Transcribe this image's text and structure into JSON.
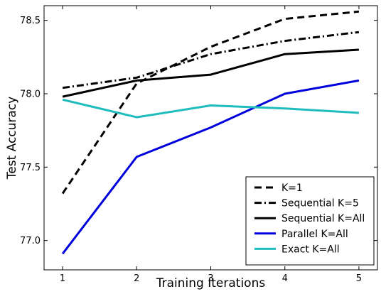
{
  "chart_data": {
    "type": "line",
    "title": "",
    "xlabel": "Training Iterations",
    "ylabel": "Test Accuracy",
    "x": [
      1,
      2,
      3,
      4,
      5
    ],
    "xlim": [
      0.75,
      5.25
    ],
    "ylim": [
      76.8,
      78.6
    ],
    "xticks": [
      1,
      2,
      3,
      4,
      5
    ],
    "xtick_labels": [
      "1",
      "2",
      "3",
      "4",
      "5"
    ],
    "yticks": [
      77.0,
      77.5,
      78.0,
      78.5
    ],
    "ytick_labels": [
      "77.0",
      "77.5",
      "78.0",
      "78.5"
    ],
    "grid": false,
    "legend_position": "bottom-right",
    "series": [
      {
        "name": "K=1",
        "values": [
          77.32,
          78.07,
          78.32,
          78.51,
          78.56
        ],
        "color": "#000000",
        "linestyle": "dashed"
      },
      {
        "name": "Sequential K=5",
        "values": [
          78.04,
          78.11,
          78.27,
          78.36,
          78.42
        ],
        "color": "#000000",
        "linestyle": "dashdot"
      },
      {
        "name": "Sequential K=All",
        "values": [
          77.98,
          78.09,
          78.13,
          78.27,
          78.3
        ],
        "color": "#000000",
        "linestyle": "solid"
      },
      {
        "name": "Parallel K=All",
        "values": [
          76.91,
          77.57,
          77.77,
          78.0,
          78.09
        ],
        "color": "#0000dd",
        "linestyle": "solid"
      },
      {
        "name": "Exact K=All",
        "values": [
          77.96,
          77.84,
          77.92,
          77.9,
          77.87
        ],
        "color": "#1ebcbc",
        "linestyle": "solid"
      }
    ]
  }
}
